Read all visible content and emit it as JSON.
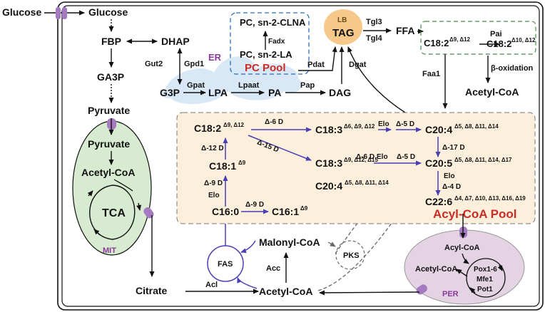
{
  "labels": {
    "glucose_ext": "Glucose",
    "glucose_in": "Glucose",
    "fbp": "FBP",
    "dhap": "DHAP",
    "ga3p": "GA3P",
    "pyruvate": "Pyruvate",
    "pyruvate_mit": "Pyruvate",
    "acetylcoa_mit": "Acetyl-CoA",
    "tca": "TCA",
    "mit": "MIT",
    "citrate": "Citrate",
    "acl": "Acl",
    "acetylcoa_cyt": "Acetyl-CoA",
    "acc": "Acc",
    "malonylcoa": "Malonyl-CoA",
    "fas": "FAS",
    "pks": "PKS",
    "gut2": "Gut2",
    "gpd1": "Gpd1",
    "g3p": "G3P",
    "gpat": "Gpat",
    "lpa": "LPA",
    "lpaat": "Lpaat",
    "pa": "PA",
    "pap": "Pap",
    "dag": "DAG",
    "pdat": "Pdat",
    "dgat": "Dgat",
    "er": "ER",
    "pc_clna": "PC, sn-2-CLNA",
    "fadx": "Fadx",
    "pc_la": "PC, sn-2-LA",
    "pc_pool": "PC Pool",
    "lb": "LB",
    "tag": "TAG",
    "tgl3": "Tgl3",
    "tgl4": "Tgl4",
    "ffa": "FFA",
    "c18_2_top": "C18:2",
    "c18_2_top_sup": "Δ9, Δ12",
    "pai": "Pai",
    "c18_2_conj": "C18:2",
    "c18_2_conj_sup": "Δ10, Δ12",
    "faa1": "Faa1",
    "beta_ox": "β-oxidation",
    "acetylcoa_top": "Acetyl-CoA",
    "c18_2": "C18:2",
    "c18_2_sup": "Δ9, Δ12",
    "d6d_1": "Δ-6 D",
    "c18_3_a": "C18:3",
    "c18_3_a_sup": "Δ6, Δ9, Δ12",
    "elo_1": "Elo",
    "d5d_1": "Δ-5 D",
    "c20_4_a": "C20:4",
    "c20_4_a_sup": "Δ5, Δ8, Δ11, Δ14",
    "d12d": "Δ-12 D",
    "d15d": "Δ-15 D",
    "d17d": "Δ-17 D",
    "c18_1": "C18:1",
    "c18_1_sup": "Δ9",
    "c18_3_b": "C18:3",
    "c18_3_b_sup": "Δ9, Δ12, Δ15",
    "d6d_2": "Δ-6 D",
    "elo_2": "Elo",
    "d5d_2": "Δ-5 D",
    "c20_5": "C20:5",
    "c20_5_sup": "Δ5, Δ8, Δ11, Δ14, Δ17",
    "d9d_v": "Δ-9 D",
    "elo_3": "Elo",
    "elo_4": "Elo",
    "d4d": "Δ-4 D",
    "c20_4_b": "C20:4",
    "c20_4_b_sup": "Δ5, Δ8, Δ11, Δ14",
    "c16_0": "C16:0",
    "d9d_h": "Δ-9 D",
    "c16_1": "C16:1",
    "c16_1_sup": "Δ9",
    "c22_6": "C22:6",
    "c22_6_sup": "Δ4, Δ7, Δ10, Δ13, Δ16, Δ19",
    "acyl_pool": "Acyl-CoA Pool",
    "acylcoa_per": "Acyl-CoA",
    "acetylcoa_per": "Acetyl-CoA",
    "pox": "Pox1-6",
    "mfe1": "Mfe1",
    "pot1": "Pot1",
    "per": "PER"
  },
  "colors": {
    "outline": "#111111",
    "acyl_pool_fill": "#fcefdc",
    "mit_fill": "#d6ebcf",
    "per_fill": "#e4d3e3",
    "er_fill": "#d4e6f5",
    "lb_fill": "#f6c98a",
    "pathway_blue": "#4b3fb6",
    "highlight_red": "#cc2b26",
    "organelle_label": "#8b3a9b",
    "transporter": "#a47ac0"
  }
}
